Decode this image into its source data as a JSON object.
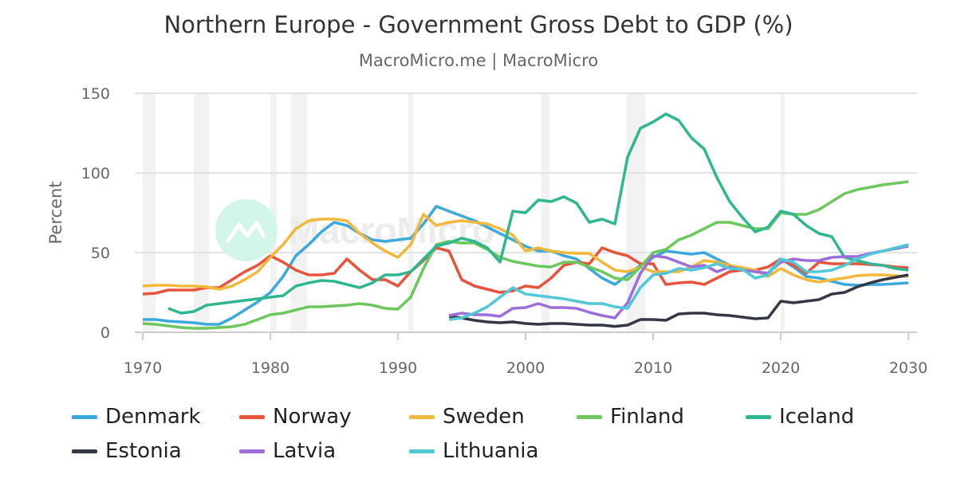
{
  "chart_data": {
    "type": "line",
    "title": "Northern Europe - Government Gross Debt to GDP (%)",
    "subtitle": "MacroMicro.me | MacroMicro",
    "xlabel": "",
    "ylabel": "Percent",
    "xlim": [
      1970,
      2030
    ],
    "ylim": [
      0,
      150
    ],
    "x_ticks": [
      "1970",
      "1980",
      "1990",
      "2000",
      "2010",
      "2020",
      "2030"
    ],
    "y_ticks": [
      "0",
      "50",
      "100",
      "150"
    ],
    "grid": true,
    "legend_position": "bottom",
    "recession_bands": [
      [
        1970,
        1971
      ],
      [
        1974,
        1975.2
      ],
      [
        1980,
        1980.5
      ],
      [
        1981.6,
        1982.9
      ],
      [
        1990.8,
        1991.2
      ],
      [
        2001.2,
        2001.9
      ],
      [
        2007.9,
        2009.4
      ],
      [
        2020,
        2020.3
      ]
    ],
    "watermark": "MacroMicro",
    "series": [
      {
        "name": "Denmark",
        "color": "#3ba9dc",
        "start": 1970,
        "values": [
          8,
          8,
          7,
          6.5,
          6,
          5,
          5,
          9,
          14,
          19,
          25,
          35,
          48,
          55,
          63,
          69,
          67,
          62,
          58,
          57,
          58,
          59,
          68,
          79,
          76,
          73,
          70,
          66,
          62,
          58,
          54,
          51,
          51,
          48,
          46,
          40,
          34,
          30,
          36,
          42,
          47,
          51,
          50,
          49,
          50,
          46,
          42,
          40,
          38,
          37,
          46,
          41,
          35,
          34,
          32,
          30,
          29.5,
          30,
          30,
          30.5,
          31
        ]
      },
      {
        "name": "Norway",
        "color": "#e8533b",
        "start": 1970,
        "values": [
          24,
          24.5,
          26.5,
          26.5,
          26.5,
          28,
          28,
          33,
          38,
          42,
          48,
          44,
          39,
          36,
          36,
          37,
          46,
          39,
          33,
          33,
          29,
          38,
          45,
          53,
          51,
          33,
          29,
          27,
          25,
          26,
          29,
          28,
          34,
          42,
          44,
          43,
          53,
          50,
          48,
          43,
          43,
          30,
          31,
          31.5,
          30,
          34,
          38,
          39,
          39,
          41,
          46,
          42,
          37,
          44,
          43,
          43,
          43,
          42.5,
          42,
          41,
          40.5
        ]
      },
      {
        "name": "Sweden",
        "color": "#f2b83c",
        "start": 1970,
        "values": [
          29,
          29.5,
          29.5,
          29,
          29,
          28.5,
          27,
          29,
          33,
          38,
          47,
          55,
          65,
          70,
          71,
          71,
          70,
          62,
          56,
          51,
          47,
          55,
          74,
          67,
          69,
          70,
          69,
          68,
          65,
          61,
          51,
          53,
          51,
          50,
          49.5,
          49.5,
          44,
          39,
          38,
          41,
          38,
          38,
          38,
          41,
          45,
          44,
          42,
          40.5,
          39,
          35,
          40,
          36,
          33,
          31.5,
          33,
          34,
          35.5,
          36,
          36,
          35.5,
          35
        ]
      },
      {
        "name": "Finland",
        "color": "#6cc85c",
        "start": 1970,
        "values": [
          5.5,
          5,
          4,
          3,
          2.5,
          2.5,
          3,
          3.5,
          5,
          8,
          11,
          12,
          14,
          16,
          16,
          16.5,
          17,
          18,
          17,
          15,
          14.5,
          22,
          40,
          55,
          57,
          56,
          56,
          52,
          47,
          44.5,
          43,
          41.5,
          41,
          44,
          44,
          41,
          38,
          34,
          33,
          41,
          50,
          52,
          58,
          61,
          65,
          69,
          69,
          67,
          65,
          65,
          75,
          74,
          74,
          77,
          82,
          87,
          89.5,
          91,
          92.5,
          93.5,
          94.5
        ]
      },
      {
        "name": "Iceland",
        "color": "#2fb792",
        "start": 1972,
        "values": [
          15,
          12,
          13,
          17,
          18,
          19,
          20,
          21,
          22,
          23,
          29,
          31,
          32.5,
          32,
          30,
          28,
          31,
          36,
          36,
          38,
          46,
          54,
          56,
          59,
          57,
          53,
          44,
          76,
          75,
          83,
          82,
          85,
          81,
          69,
          71,
          68,
          110,
          128,
          132,
          137,
          133,
          122,
          115,
          97,
          82,
          72,
          63,
          66,
          76,
          74,
          67,
          62,
          60,
          47,
          45,
          43,
          42,
          40,
          39
        ]
      },
      {
        "name": "Estonia",
        "color": "#343746",
        "start": 1994,
        "values": [
          10,
          9,
          7.5,
          6.5,
          6,
          6.5,
          5.5,
          5,
          5.5,
          5.5,
          5,
          4.5,
          4.5,
          3.7,
          4.5,
          8,
          8,
          7.5,
          11.5,
          12,
          12,
          11,
          10.5,
          9.5,
          8.5,
          9,
          19.5,
          18.5,
          19.5,
          20.5,
          24,
          25,
          28.5,
          31,
          33,
          34.5,
          36
        ]
      },
      {
        "name": "Latvia",
        "color": "#9b6edc",
        "start": 1994,
        "values": [
          10.5,
          12,
          11,
          11,
          10,
          15,
          15.5,
          18,
          15.5,
          15.5,
          15,
          12.5,
          10.5,
          9,
          18.5,
          37,
          48,
          47,
          44,
          41,
          42,
          38,
          41,
          39,
          38,
          37,
          44,
          46,
          45,
          45,
          47,
          47.5,
          47.5,
          49.5,
          51,
          52.5,
          54
        ]
      },
      {
        "name": "Lithuania",
        "color": "#50c8d8",
        "start": 1994,
        "values": [
          8,
          9,
          12,
          16,
          22,
          28,
          24,
          23,
          22,
          21,
          19.5,
          18,
          18,
          16,
          15,
          28,
          36,
          37,
          40,
          39,
          40.5,
          43,
          40,
          39.5,
          34,
          36,
          46,
          44,
          38,
          38,
          39,
          42,
          46,
          49,
          51,
          53,
          55
        ]
      }
    ]
  }
}
